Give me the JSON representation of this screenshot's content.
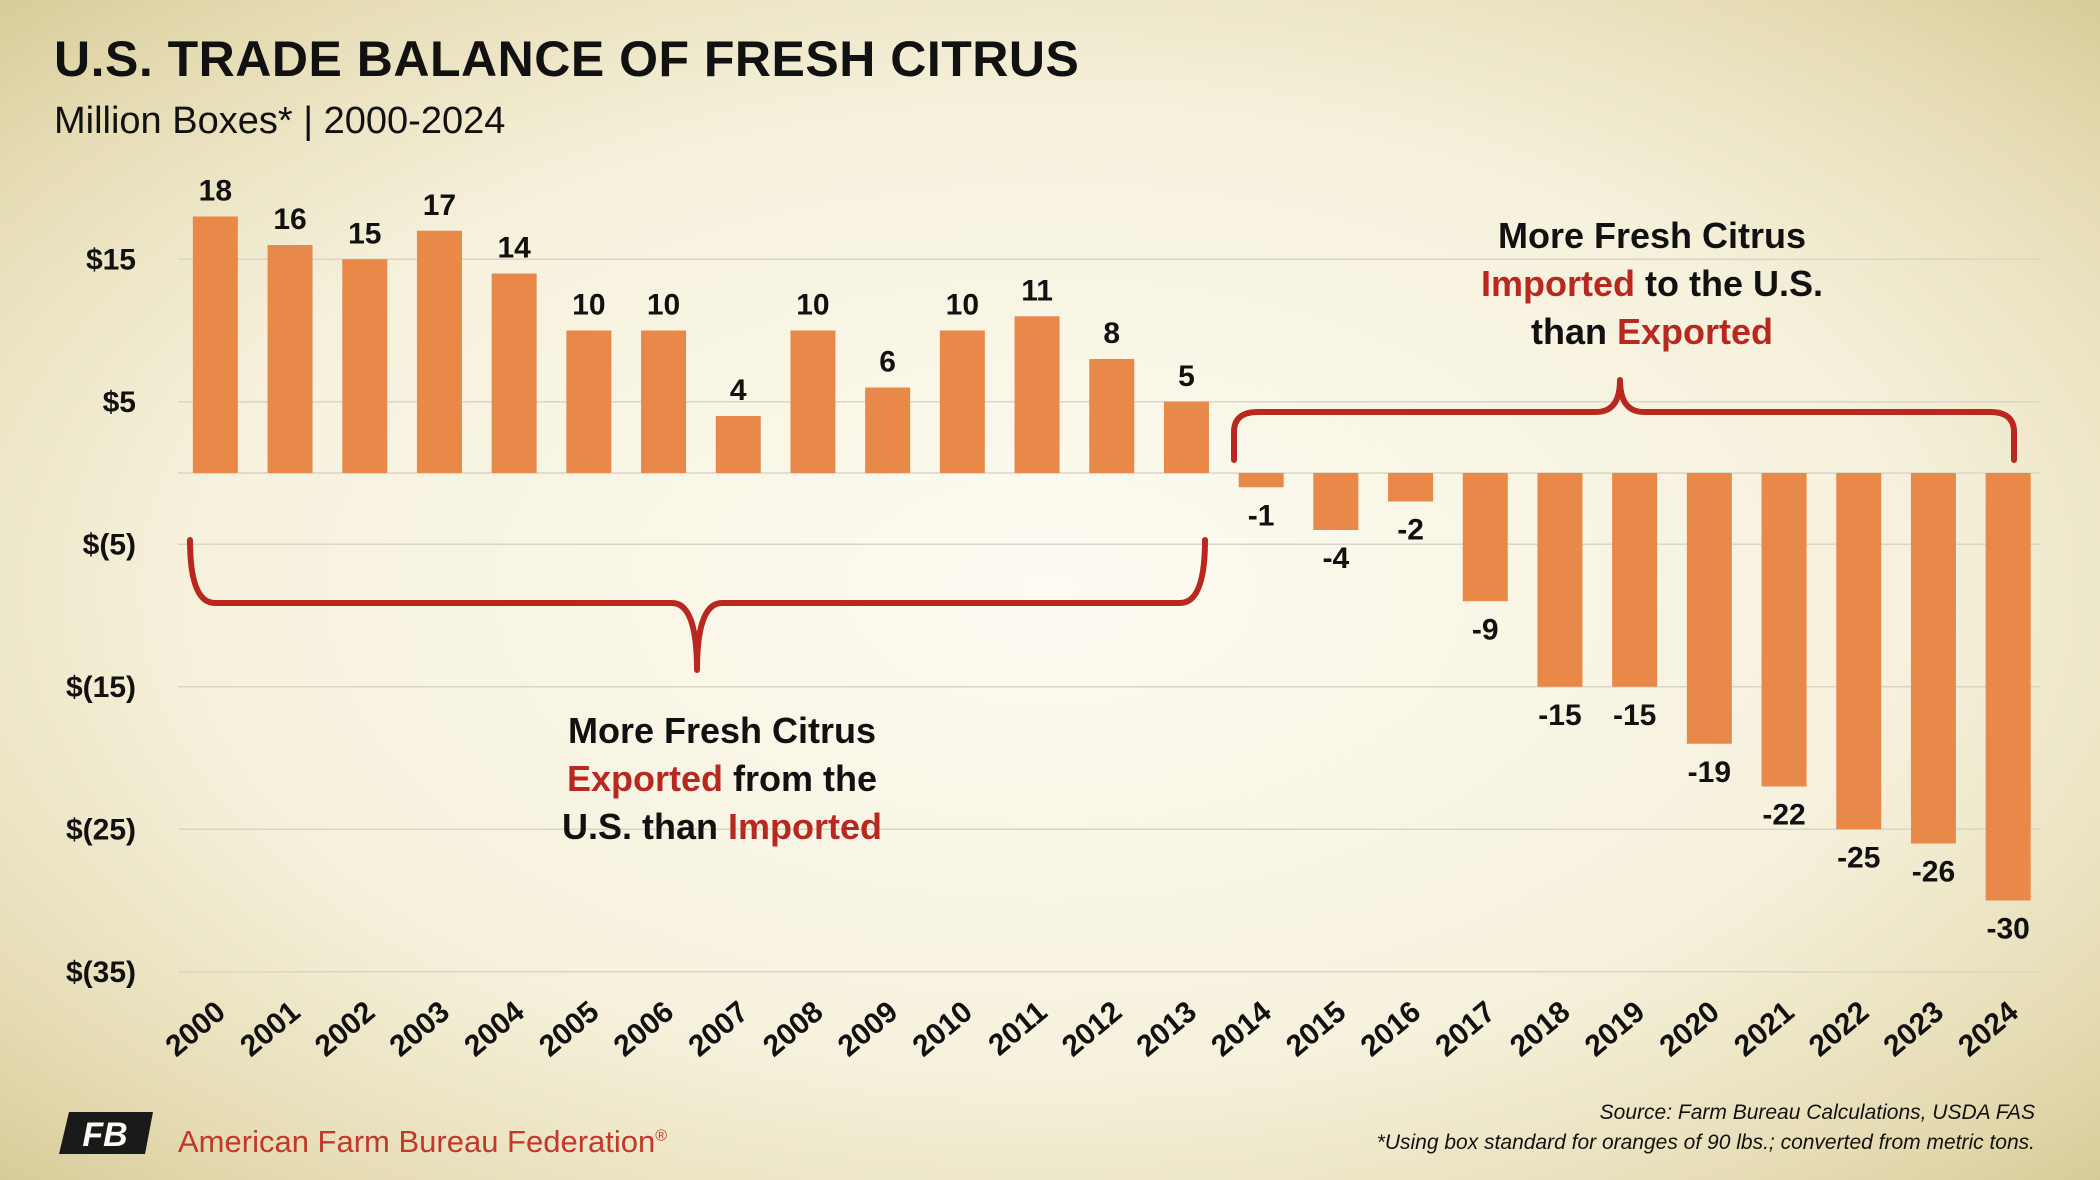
{
  "header": {
    "title": "U.S. TRADE BALANCE OF FRESH CITRUS",
    "subtitle": "Million Boxes* | 2000-2024"
  },
  "footer": {
    "org_name": "American Farm Bureau Federation",
    "org_reg": "®",
    "logo_letters": "FB",
    "source": "Source: Farm Bureau Calculations, USDA FAS",
    "note": "*Using box standard for oranges of 90 lbs.; converted from metric tons."
  },
  "annotations": [
    {
      "id": "export-note",
      "lines": [
        [
          {
            "text": "More Fresh Citrus",
            "accent": false
          }
        ],
        [
          {
            "text": "Exported",
            "accent": true
          },
          {
            "text": " from the",
            "accent": false
          }
        ],
        [
          {
            "text": "U.S.  than ",
            "accent": false
          },
          {
            "text": "Imported",
            "accent": true
          }
        ]
      ]
    },
    {
      "id": "import-note",
      "lines": [
        [
          {
            "text": "More Fresh Citrus",
            "accent": false
          }
        ],
        [
          {
            "text": "Imported",
            "accent": true
          },
          {
            "text": " to the U.S.",
            "accent": false
          }
        ],
        [
          {
            "text": "than ",
            "accent": false
          },
          {
            "text": "Exported",
            "accent": true
          }
        ]
      ]
    }
  ],
  "colors": {
    "bar": "#e8894a",
    "accent": "#b8281e",
    "bracket": "#b8281e",
    "grid": "#d9d5c7",
    "text": "#111111"
  },
  "chart_data": {
    "type": "bar",
    "categories": [
      "2000",
      "2001",
      "2002",
      "2003",
      "2004",
      "2005",
      "2006",
      "2007",
      "2008",
      "2009",
      "2010",
      "2011",
      "2012",
      "2013",
      "2014",
      "2015",
      "2016",
      "2017",
      "2018",
      "2019",
      "2020",
      "2021",
      "2022",
      "2023",
      "2024"
    ],
    "values": [
      18,
      16,
      15,
      17,
      14,
      10,
      10,
      4,
      10,
      6,
      10,
      11,
      8,
      5,
      -1,
      -4,
      -2,
      -9,
      -15,
      -15,
      -19,
      -22,
      -25,
      -26,
      -30
    ],
    "value_labels": [
      "18",
      "16",
      "15",
      "17",
      "14",
      "10",
      "10",
      "4",
      "10",
      "6",
      "10",
      "11",
      "8",
      "5",
      "-1",
      "-4",
      "-2",
      "-9",
      "-15",
      "-15",
      "-19",
      "-22",
      "-25",
      "-26",
      "-30"
    ],
    "yticks": [
      15,
      5,
      -5,
      -15,
      -25,
      -35
    ],
    "ytick_labels": [
      "$15",
      "$5",
      "$(5)",
      "$(15)",
      "$(25)",
      "$(35)"
    ],
    "ylim": [
      -35,
      20
    ],
    "grid": true,
    "legend": "none"
  }
}
